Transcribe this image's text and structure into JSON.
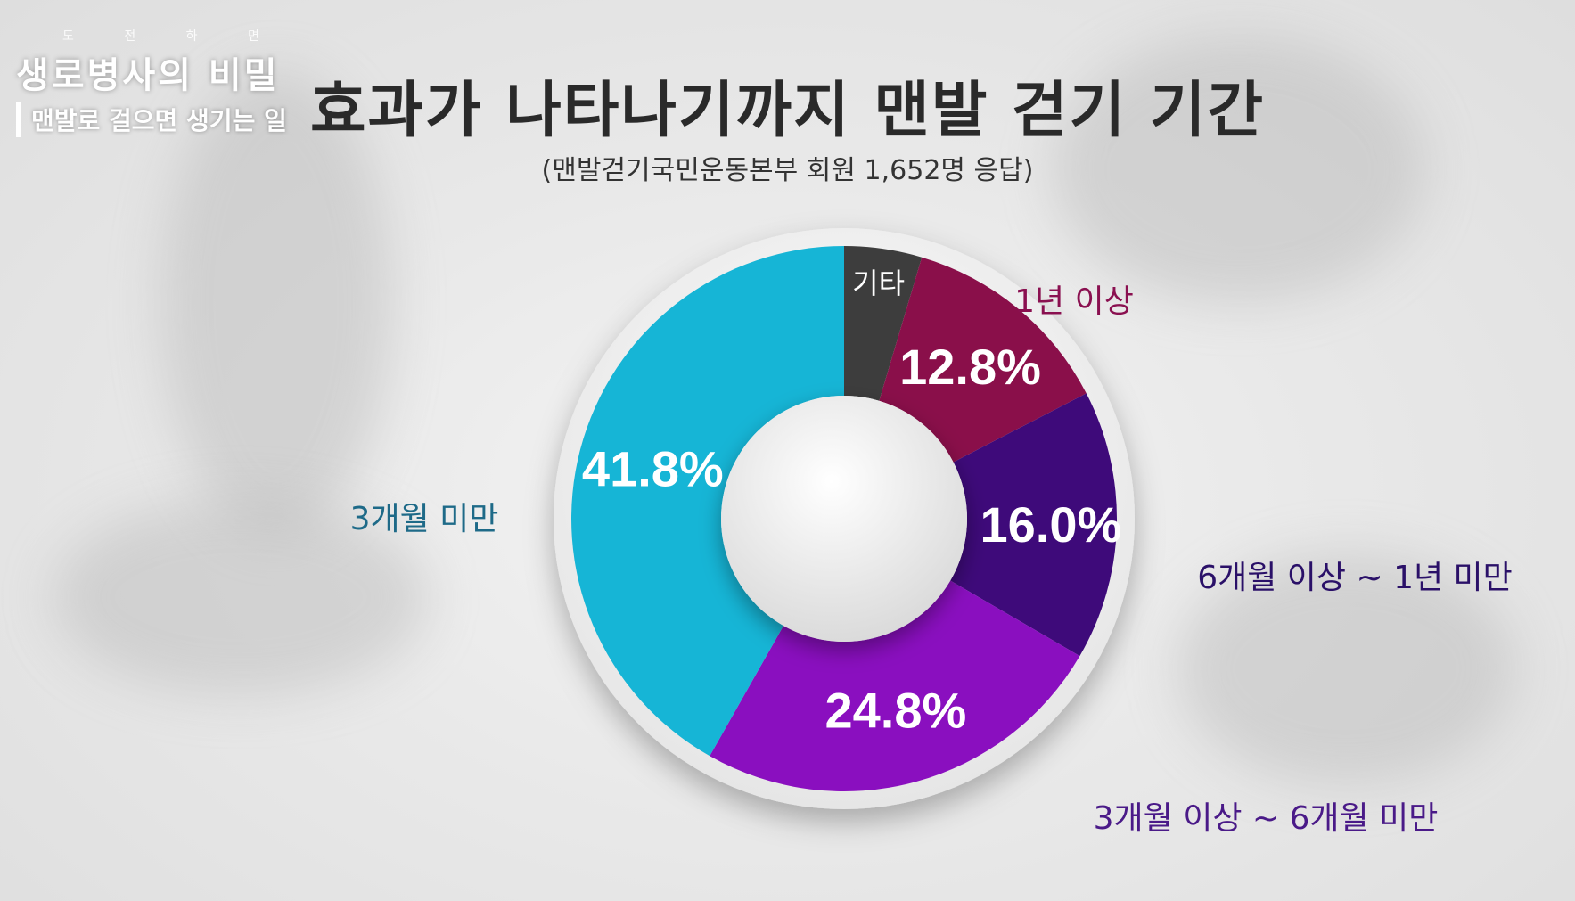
{
  "overlay": {
    "logo_small": "도 전 하 면",
    "logo_title": "생로병사의 비밀",
    "logo_sub": "맨발로 걸으면 생기는 일"
  },
  "chart_data": {
    "type": "pie",
    "title": "효과가 나타나기까지 맨발 걷기 기간",
    "subtitle": "(맨발걷기국민운동본부 회원 1,652명 응답)",
    "slices": [
      {
        "label": "기타",
        "value": 4.6,
        "display": "",
        "color": "#3d3d3d"
      },
      {
        "label": "1년 이상",
        "value": 12.8,
        "display": "12.8%",
        "color": "#8a0f4a"
      },
      {
        "label": "6개월 이상 ~ 1년 미만",
        "value": 16.0,
        "display": "16.0%",
        "color": "#3e0a7a"
      },
      {
        "label": "3개월 이상 ~ 6개월 미만",
        "value": 24.8,
        "display": "24.8%",
        "color": "#8a0fbf"
      },
      {
        "label": "3개월 미만",
        "value": 41.8,
        "display": "41.8%",
        "color": "#16b5d6"
      }
    ],
    "label_colors": {
      "1년 이상": "#8a1050",
      "6개월 이상 ~ 1년 미만": "#2a1068",
      "3개월 이상 ~ 6개월 미만": "#4a1a88",
      "3개월 미만": "#1e6a88",
      "기타": "#ffffff"
    }
  }
}
